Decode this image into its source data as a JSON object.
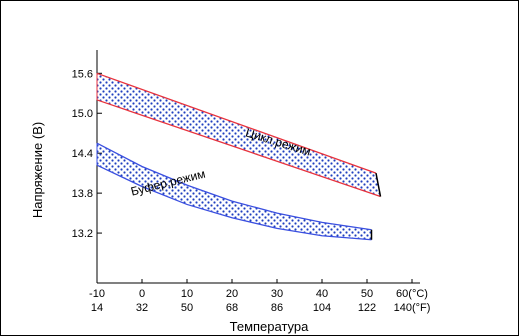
{
  "chart_data": {
    "type": "area",
    "xlabel": "Температура",
    "ylabel": "Напряжение (В)",
    "xlim": [
      -10,
      60
    ],
    "ylim": [
      12.45,
      15.95
    ],
    "x_ticks_c": [
      "-10",
      "0",
      "10",
      "20",
      "30",
      "40",
      "50",
      "60(°C)"
    ],
    "x_ticks_f": [
      "14",
      "32",
      "50",
      "68",
      "86",
      "104",
      "122",
      "140(°F)"
    ],
    "x_tick_values": [
      -10,
      0,
      10,
      20,
      30,
      40,
      50,
      60
    ],
    "y_ticks": [
      "15.6",
      "15.0",
      "14.4",
      "13.8",
      "13.2"
    ],
    "y_tick_values": [
      15.6,
      15.0,
      14.4,
      13.8,
      13.2
    ],
    "grid": false,
    "series": [
      {
        "name": "Цикл.режим",
        "edge_color": "#e8323c",
        "fill_color": "#1f3fbf",
        "upper": {
          "x": [
            -10,
            52
          ],
          "y": [
            15.6,
            14.1
          ]
        },
        "lower": {
          "x": [
            -10,
            53
          ],
          "y": [
            15.2,
            13.75
          ]
        }
      },
      {
        "name": "Буфер.режим",
        "edge_color": "#3a4fe0",
        "fill_color": "#1f3fbf",
        "upper": {
          "x": [
            -10,
            0,
            10,
            20,
            30,
            40,
            51
          ],
          "y": [
            14.55,
            14.2,
            13.92,
            13.68,
            13.5,
            13.36,
            13.25
          ]
        },
        "lower": {
          "x": [
            -10,
            0,
            10,
            20,
            30,
            40,
            51
          ],
          "y": [
            14.22,
            13.9,
            13.63,
            13.43,
            13.27,
            13.16,
            13.1
          ]
        }
      }
    ]
  }
}
